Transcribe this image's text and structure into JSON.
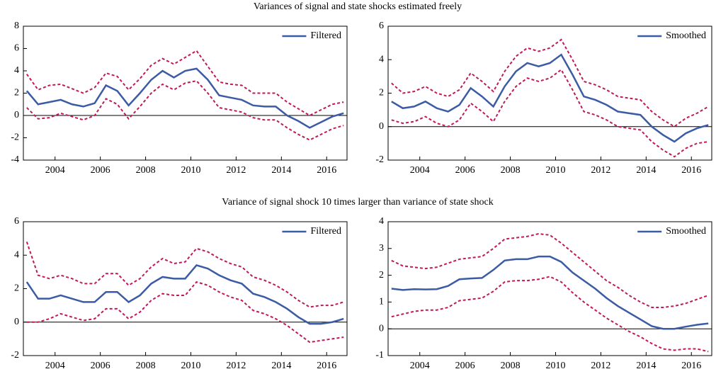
{
  "headings": [
    "Variances of signal and state shocks estimated freely",
    "Variance of signal shock 10 times larger than variance of state shock"
  ],
  "chart_data": [
    {
      "type": "line",
      "legend": "upper right",
      "x": [
        2002.75,
        2003.25,
        2003.75,
        2004.25,
        2004.75,
        2005.25,
        2005.75,
        2006.25,
        2006.75,
        2007.25,
        2007.75,
        2008.25,
        2008.75,
        2009.25,
        2009.75,
        2010.25,
        2010.75,
        2011.25,
        2011.75,
        2012.25,
        2012.75,
        2013.25,
        2013.75,
        2014.25,
        2014.75,
        2015.25,
        2015.75,
        2016.25,
        2016.75
      ],
      "xlim": [
        2002.6,
        2016.9
      ],
      "xticks": [
        2004,
        2006,
        2008,
        2010,
        2012,
        2014,
        2016
      ],
      "ylim": [
        -4,
        8
      ],
      "yticks": [
        -4,
        -2,
        0,
        2,
        4,
        6,
        8
      ],
      "series": [
        {
          "name": "Filtered",
          "color": "#3b5ba5",
          "values": [
            2.2,
            1.0,
            1.2,
            1.4,
            1.0,
            0.8,
            1.1,
            2.7,
            2.2,
            0.9,
            2.0,
            3.2,
            4.0,
            3.4,
            4.0,
            4.2,
            3.2,
            1.8,
            1.6,
            1.4,
            0.9,
            0.8,
            0.8,
            0.0,
            -0.5,
            -1.1,
            -0.6,
            -0.1,
            0.2
          ]
        },
        {
          "color": "#c0195a",
          "dash": true,
          "values": [
            3.7,
            2.3,
            2.7,
            2.8,
            2.4,
            2.0,
            2.5,
            3.8,
            3.5,
            2.3,
            3.3,
            4.5,
            5.1,
            4.6,
            5.2,
            5.8,
            4.4,
            3.0,
            2.8,
            2.7,
            2.0,
            2.0,
            2.0,
            1.2,
            0.6,
            0.0,
            0.5,
            1.0,
            1.2
          ]
        },
        {
          "color": "#c0195a",
          "dash": true,
          "values": [
            0.7,
            -0.3,
            -0.2,
            0.2,
            -0.1,
            -0.4,
            0.0,
            1.5,
            1.0,
            -0.3,
            0.8,
            2.0,
            2.8,
            2.3,
            2.9,
            3.1,
            2.0,
            0.7,
            0.5,
            0.3,
            -0.2,
            -0.4,
            -0.4,
            -1.1,
            -1.7,
            -2.2,
            -1.7,
            -1.2,
            -0.9
          ]
        }
      ]
    },
    {
      "type": "line",
      "legend": "upper right",
      "x": [
        2002.75,
        2003.25,
        2003.75,
        2004.25,
        2004.75,
        2005.25,
        2005.75,
        2006.25,
        2006.75,
        2007.25,
        2007.75,
        2008.25,
        2008.75,
        2009.25,
        2009.75,
        2010.25,
        2010.75,
        2011.25,
        2011.75,
        2012.25,
        2012.75,
        2013.25,
        2013.75,
        2014.25,
        2014.75,
        2015.25,
        2015.75,
        2016.25,
        2016.75
      ],
      "xlim": [
        2002.6,
        2016.9
      ],
      "xticks": [
        2004,
        2006,
        2008,
        2010,
        2012,
        2014,
        2016
      ],
      "ylim": [
        -2,
        6
      ],
      "yticks": [
        -2,
        0,
        2,
        4,
        6
      ],
      "series": [
        {
          "name": "Smoothed",
          "color": "#3b5ba5",
          "values": [
            1.5,
            1.1,
            1.2,
            1.5,
            1.1,
            0.9,
            1.3,
            2.3,
            1.8,
            1.2,
            2.4,
            3.3,
            3.8,
            3.6,
            3.8,
            4.3,
            3.1,
            1.8,
            1.6,
            1.3,
            0.9,
            0.8,
            0.7,
            0.0,
            -0.5,
            -0.9,
            -0.4,
            -0.1,
            0.1
          ]
        },
        {
          "color": "#c0195a",
          "dash": true,
          "values": [
            2.6,
            2.0,
            2.1,
            2.4,
            2.0,
            1.8,
            2.2,
            3.2,
            2.7,
            2.1,
            3.3,
            4.2,
            4.7,
            4.5,
            4.7,
            5.2,
            4.0,
            2.7,
            2.5,
            2.2,
            1.8,
            1.7,
            1.6,
            0.9,
            0.4,
            0.0,
            0.5,
            0.8,
            1.2
          ]
        },
        {
          "color": "#c0195a",
          "dash": true,
          "values": [
            0.4,
            0.2,
            0.3,
            0.6,
            0.2,
            0.0,
            0.4,
            1.4,
            0.9,
            0.3,
            1.5,
            2.4,
            2.9,
            2.7,
            2.9,
            3.4,
            2.2,
            0.9,
            0.7,
            0.4,
            0.0,
            -0.1,
            -0.2,
            -0.9,
            -1.4,
            -1.8,
            -1.3,
            -1.0,
            -0.9
          ]
        }
      ]
    },
    {
      "type": "line",
      "legend": "upper right",
      "x": [
        2002.75,
        2003.25,
        2003.75,
        2004.25,
        2004.75,
        2005.25,
        2005.75,
        2006.25,
        2006.75,
        2007.25,
        2007.75,
        2008.25,
        2008.75,
        2009.25,
        2009.75,
        2010.25,
        2010.75,
        2011.25,
        2011.75,
        2012.25,
        2012.75,
        2013.25,
        2013.75,
        2014.25,
        2014.75,
        2015.25,
        2015.75,
        2016.25,
        2016.75
      ],
      "xlim": [
        2002.6,
        2016.9
      ],
      "xticks": [
        2004,
        2006,
        2008,
        2010,
        2012,
        2014,
        2016
      ],
      "ylim": [
        -2,
        6
      ],
      "yticks": [
        -2,
        0,
        2,
        4,
        6
      ],
      "series": [
        {
          "name": "Filtered",
          "color": "#3b5ba5",
          "values": [
            2.4,
            1.4,
            1.4,
            1.6,
            1.4,
            1.2,
            1.2,
            1.8,
            1.8,
            1.2,
            1.6,
            2.3,
            2.7,
            2.6,
            2.6,
            3.4,
            3.2,
            2.8,
            2.5,
            2.3,
            1.7,
            1.5,
            1.2,
            0.8,
            0.3,
            -0.1,
            -0.1,
            0.0,
            0.2
          ]
        },
        {
          "color": "#c0195a",
          "dash": true,
          "values": [
            4.8,
            2.8,
            2.6,
            2.8,
            2.6,
            2.3,
            2.3,
            2.9,
            2.9,
            2.2,
            2.6,
            3.3,
            3.8,
            3.5,
            3.6,
            4.4,
            4.2,
            3.8,
            3.5,
            3.3,
            2.7,
            2.5,
            2.2,
            1.8,
            1.3,
            0.9,
            1.0,
            1.0,
            1.2
          ]
        },
        {
          "color": "#c0195a",
          "dash": true,
          "values": [
            0.0,
            0.0,
            0.2,
            0.5,
            0.3,
            0.1,
            0.2,
            0.8,
            0.8,
            0.2,
            0.6,
            1.3,
            1.7,
            1.6,
            1.6,
            2.4,
            2.2,
            1.8,
            1.5,
            1.3,
            0.7,
            0.5,
            0.2,
            -0.2,
            -0.7,
            -1.2,
            -1.1,
            -1.0,
            -0.9
          ]
        }
      ]
    },
    {
      "type": "line",
      "legend": "upper right",
      "x": [
        2002.75,
        2003.25,
        2003.75,
        2004.25,
        2004.75,
        2005.25,
        2005.75,
        2006.25,
        2006.75,
        2007.25,
        2007.75,
        2008.25,
        2008.75,
        2009.25,
        2009.75,
        2010.25,
        2010.75,
        2011.25,
        2011.75,
        2012.25,
        2012.75,
        2013.25,
        2013.75,
        2014.25,
        2014.75,
        2015.25,
        2015.75,
        2016.25,
        2016.75
      ],
      "xlim": [
        2002.6,
        2016.9
      ],
      "xticks": [
        2004,
        2006,
        2008,
        2010,
        2012,
        2014,
        2016
      ],
      "ylim": [
        -1,
        4
      ],
      "yticks": [
        -1,
        0,
        1,
        2,
        3,
        4
      ],
      "series": [
        {
          "name": "Smoothed",
          "color": "#3b5ba5",
          "values": [
            1.5,
            1.45,
            1.48,
            1.47,
            1.48,
            1.6,
            1.85,
            1.88,
            1.9,
            2.2,
            2.55,
            2.6,
            2.6,
            2.7,
            2.7,
            2.5,
            2.1,
            1.8,
            1.5,
            1.15,
            0.85,
            0.6,
            0.35,
            0.1,
            0.0,
            0.0,
            0.08,
            0.15,
            0.2
          ]
        },
        {
          "color": "#c0195a",
          "dash": true,
          "values": [
            2.55,
            2.35,
            2.3,
            2.25,
            2.3,
            2.45,
            2.6,
            2.65,
            2.7,
            3.0,
            3.35,
            3.4,
            3.45,
            3.55,
            3.5,
            3.2,
            2.85,
            2.5,
            2.15,
            1.8,
            1.55,
            1.25,
            1.0,
            0.8,
            0.8,
            0.85,
            0.95,
            1.1,
            1.25
          ]
        },
        {
          "color": "#c0195a",
          "dash": true,
          "values": [
            0.45,
            0.55,
            0.65,
            0.7,
            0.7,
            0.8,
            1.05,
            1.1,
            1.15,
            1.4,
            1.75,
            1.8,
            1.8,
            1.85,
            1.95,
            1.75,
            1.35,
            1.0,
            0.7,
            0.4,
            0.15,
            -0.1,
            -0.3,
            -0.55,
            -0.75,
            -0.8,
            -0.75,
            -0.75,
            -0.85
          ]
        }
      ]
    }
  ]
}
